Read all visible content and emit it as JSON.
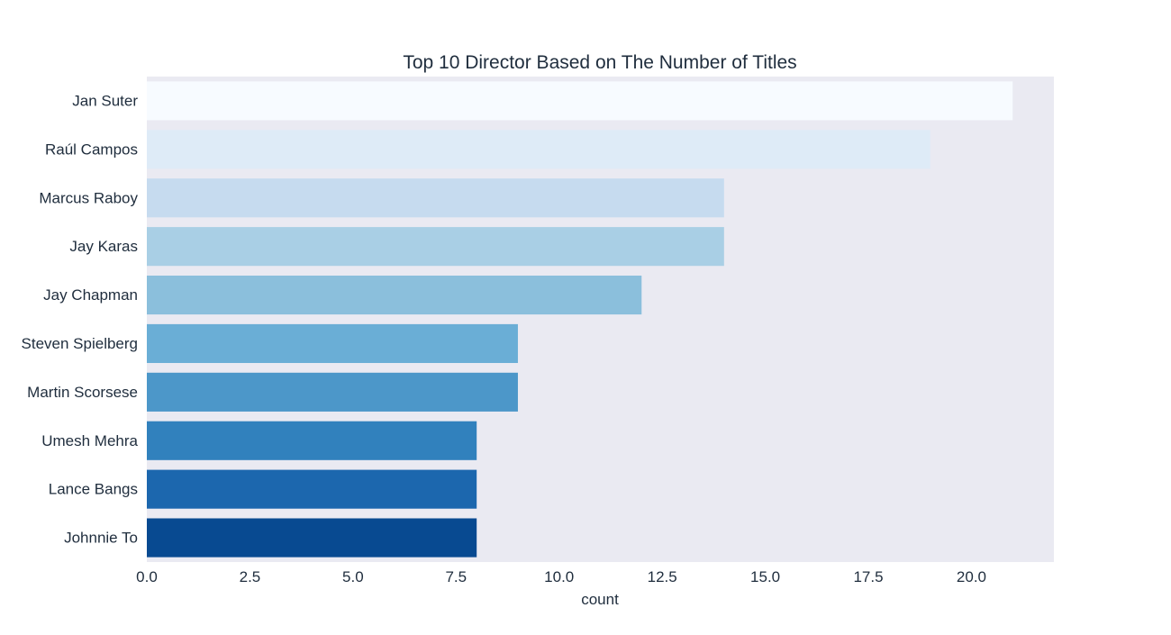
{
  "chart_data": {
    "type": "bar",
    "orientation": "horizontal",
    "title": "Top 10 Director Based on The Number of Titles",
    "xlabel": "count",
    "ylabel": "",
    "xlim": [
      0,
      22
    ],
    "x_ticks": [
      0.0,
      2.5,
      5.0,
      7.5,
      10.0,
      12.5,
      15.0,
      17.5,
      20.0
    ],
    "x_tick_labels": [
      "0.0",
      "2.5",
      "5.0",
      "7.5",
      "10.0",
      "12.5",
      "15.0",
      "17.5",
      "20.0"
    ],
    "categories": [
      "Jan Suter",
      "Raúl Campos",
      "Marcus Raboy",
      "Jay Karas",
      "Jay Chapman",
      "Steven Spielberg",
      "Martin Scorsese",
      "Umesh Mehra",
      "Lance Bangs",
      "Johnnie To"
    ],
    "values": [
      21,
      19,
      14,
      14,
      12,
      9,
      9,
      8,
      8,
      8
    ],
    "colors": [
      "#f7fbff",
      "#deebf7",
      "#c6dbef",
      "#a9cfe5",
      "#8bbfdc",
      "#6aaed6",
      "#4c97c9",
      "#3181bd",
      "#1c67ae",
      "#084a91"
    ],
    "background": "#eaeaf2",
    "grid": false,
    "legend": "none"
  }
}
